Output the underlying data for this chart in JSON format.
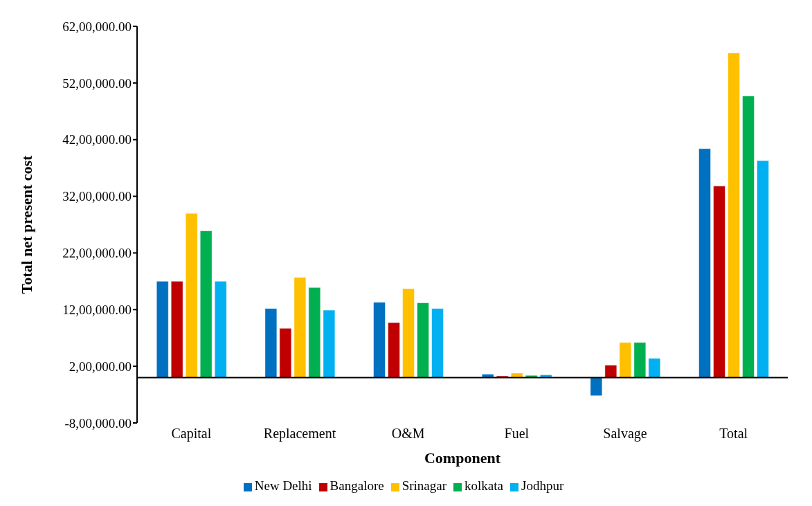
{
  "chart_data": {
    "type": "bar",
    "xlabel": "Component",
    "ylabel": "Total net present cost",
    "categories": [
      "Capital",
      "Replacement",
      "O&M",
      "Fuel",
      "Salvage",
      "Total"
    ],
    "series": [
      {
        "name": "New Delhi",
        "color": "#0070c0",
        "values": [
          1700000,
          1220000,
          1330000,
          60000,
          -320000,
          4040000
        ]
      },
      {
        "name": "Bangalore",
        "color": "#c00000",
        "values": [
          1700000,
          870000,
          970000,
          30000,
          220000,
          3380000
        ]
      },
      {
        "name": "Srinagar",
        "color": "#ffc000",
        "values": [
          2900000,
          1770000,
          1570000,
          80000,
          620000,
          5730000
        ]
      },
      {
        "name": "kolkata",
        "color": "#00b050",
        "values": [
          2590000,
          1590000,
          1320000,
          40000,
          620000,
          4970000
        ]
      },
      {
        "name": "Jodhpur",
        "color": "#00b0f0",
        "values": [
          1700000,
          1190000,
          1220000,
          50000,
          340000,
          3830000
        ]
      }
    ],
    "ylim": [
      -800000,
      6200000
    ],
    "yticks": [
      {
        "value": -800000,
        "label": "-8,00,000.00"
      },
      {
        "value": 200000,
        "label": "2,00,000.00"
      },
      {
        "value": 1200000,
        "label": "12,00,000.00"
      },
      {
        "value": 2200000,
        "label": "22,00,000.00"
      },
      {
        "value": 3200000,
        "label": "32,00,000.00"
      },
      {
        "value": 4200000,
        "label": "42,00,000.00"
      },
      {
        "value": 5200000,
        "label": "52,00,000.00"
      },
      {
        "value": 6200000,
        "label": "62,00,000.00"
      }
    ],
    "grid": false,
    "legend": "bottom"
  }
}
